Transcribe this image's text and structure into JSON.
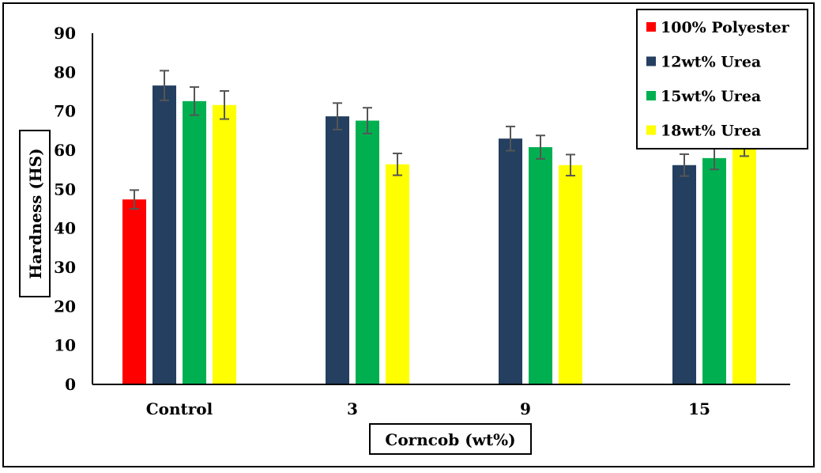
{
  "chart_data": {
    "type": "bar",
    "title": "",
    "xlabel": "Corncob (wt%)",
    "ylabel": "Hardness (HS)",
    "ylim": [
      0,
      90
    ],
    "yticks": [
      0,
      10,
      20,
      30,
      40,
      50,
      60,
      70,
      80,
      90
    ],
    "grid": false,
    "legend_position": "top-right",
    "categories": [
      "Control",
      "3",
      "9",
      "15"
    ],
    "series": [
      {
        "name": "100% Polyester",
        "color": "#ff0000",
        "values": [
          47.4,
          null,
          null,
          null
        ],
        "errors": [
          2.4,
          null,
          null,
          null
        ]
      },
      {
        "name": "12wt% Urea",
        "color": "#243f60",
        "values": [
          76.6,
          68.7,
          63.0,
          56.2
        ],
        "errors": [
          3.8,
          3.4,
          3.1,
          2.8
        ]
      },
      {
        "name": "15wt% Urea",
        "color": "#00b050",
        "values": [
          72.6,
          67.6,
          60.8,
          58.0
        ],
        "errors": [
          3.6,
          3.3,
          3.0,
          2.9
        ]
      },
      {
        "name": "18wt% Urea",
        "color": "#ffff00",
        "values": [
          71.6,
          56.4,
          56.2,
          61.6
        ],
        "errors": [
          3.6,
          2.8,
          2.7,
          3.1
        ]
      }
    ]
  }
}
